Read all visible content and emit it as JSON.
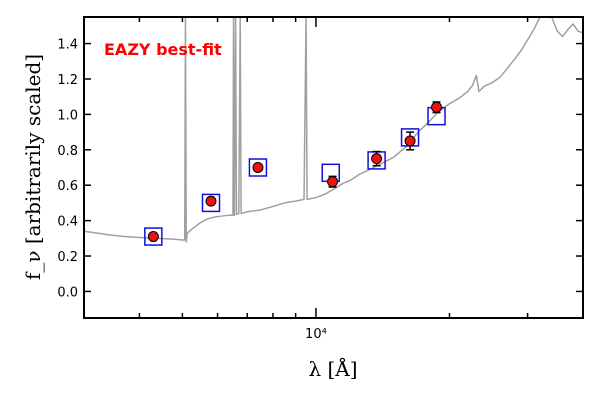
{
  "chart_data": {
    "type": "scatter",
    "title": "",
    "annotation": "EAZY best-fit",
    "annotation_color": "#ff0000",
    "xlabel": "λ [Å]",
    "ylabel": "f_ν [arbitrarily scaled]",
    "xscale": "log",
    "xlim": [
      3000,
      40000
    ],
    "ylim": [
      -0.15,
      1.55
    ],
    "x_tick_labels": [
      {
        "value": 10000,
        "label": "10⁴"
      }
    ],
    "y_ticks": [
      0.0,
      0.2,
      0.4,
      0.6,
      0.8,
      1.0,
      1.2,
      1.4
    ],
    "y_tick_labels": [
      "0.0",
      "0.2",
      "0.4",
      "0.6",
      "0.8",
      "1.0",
      "1.2",
      "1.4"
    ],
    "grid": false,
    "colors": {
      "template": "#a0a0a0",
      "model_box": "#1010dd",
      "observed": "#ee1111",
      "axis": "#000000"
    },
    "observed": [
      {
        "x": 4300,
        "y": 0.31,
        "err": 0.0
      },
      {
        "x": 5800,
        "y": 0.51,
        "err": 0.0
      },
      {
        "x": 7400,
        "y": 0.7,
        "err": 0.0
      },
      {
        "x": 10900,
        "y": 0.62,
        "err": 0.03
      },
      {
        "x": 13700,
        "y": 0.75,
        "err": 0.04
      },
      {
        "x": 16300,
        "y": 0.85,
        "err": 0.05
      },
      {
        "x": 18700,
        "y": 1.04,
        "err": 0.03
      }
    ],
    "model_boxes": [
      {
        "x": 4300,
        "y": 0.31
      },
      {
        "x": 5800,
        "y": 0.5
      },
      {
        "x": 7400,
        "y": 0.7
      },
      {
        "x": 10800,
        "y": 0.67
      },
      {
        "x": 13700,
        "y": 0.74
      },
      {
        "x": 16300,
        "y": 0.87
      },
      {
        "x": 18700,
        "y": 0.99
      }
    ],
    "template": [
      [
        3000,
        0.34
      ],
      [
        3200,
        0.33
      ],
      [
        3400,
        0.32
      ],
      [
        3700,
        0.31
      ],
      [
        4000,
        0.305
      ],
      [
        4400,
        0.3
      ],
      [
        4800,
        0.295
      ],
      [
        5050,
        0.29
      ],
      [
        5060,
        0.29
      ],
      [
        5080,
        1.55
      ],
      [
        5100,
        0.28
      ],
      [
        5130,
        0.33
      ],
      [
        5300,
        0.36
      ],
      [
        5500,
        0.39
      ],
      [
        5700,
        0.41
      ],
      [
        5900,
        0.42
      ],
      [
        6100,
        0.425
      ],
      [
        6350,
        0.43
      ],
      [
        6500,
        0.43
      ],
      [
        6520,
        1.55
      ],
      [
        6550,
        0.43
      ],
      [
        6590,
        1.55
      ],
      [
        6620,
        0.435
      ],
      [
        6700,
        0.44
      ],
      [
        6750,
        1.55
      ],
      [
        6780,
        0.44
      ],
      [
        7000,
        0.45
      ],
      [
        7500,
        0.46
      ],
      [
        8000,
        0.48
      ],
      [
        8500,
        0.5
      ],
      [
        9000,
        0.51
      ],
      [
        9400,
        0.52
      ],
      [
        9500,
        1.55
      ],
      [
        9550,
        0.52
      ],
      [
        10000,
        0.53
      ],
      [
        10500,
        0.55
      ],
      [
        11000,
        0.58
      ],
      [
        11500,
        0.61
      ],
      [
        12000,
        0.63
      ],
      [
        12500,
        0.66
      ],
      [
        13000,
        0.68
      ],
      [
        13500,
        0.7
      ],
      [
        14000,
        0.72
      ],
      [
        14500,
        0.74
      ],
      [
        15000,
        0.76
      ],
      [
        15500,
        0.79
      ],
      [
        16000,
        0.82
      ],
      [
        16500,
        0.86
      ],
      [
        17000,
        0.9
      ],
      [
        17500,
        0.93
      ],
      [
        18000,
        0.96
      ],
      [
        18500,
        0.99
      ],
      [
        19000,
        1.02
      ],
      [
        19500,
        1.04
      ],
      [
        20000,
        1.06
      ],
      [
        21000,
        1.09
      ],
      [
        22000,
        1.13
      ],
      [
        22500,
        1.16
      ],
      [
        23000,
        1.22
      ],
      [
        23300,
        1.13
      ],
      [
        24000,
        1.16
      ],
      [
        25000,
        1.18
      ],
      [
        26000,
        1.21
      ],
      [
        27000,
        1.26
      ],
      [
        28000,
        1.31
      ],
      [
        29000,
        1.36
      ],
      [
        30000,
        1.42
      ],
      [
        31000,
        1.48
      ],
      [
        32000,
        1.55
      ],
      [
        34000,
        1.55
      ],
      [
        35000,
        1.47
      ],
      [
        36000,
        1.44
      ],
      [
        37000,
        1.48
      ],
      [
        38000,
        1.51
      ],
      [
        39000,
        1.47
      ],
      [
        40000,
        1.46
      ]
    ]
  }
}
